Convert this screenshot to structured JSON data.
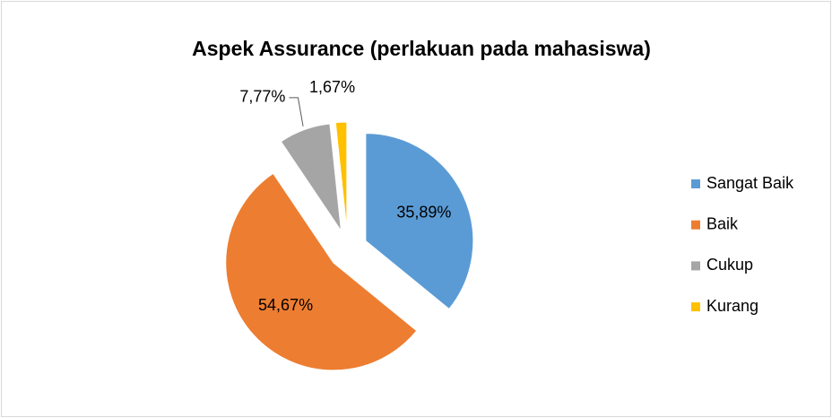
{
  "chart_data": {
    "type": "pie",
    "title": "Aspek Assurance (perlakuan pada mahasiswa)",
    "categories": [
      "Sangat Baik",
      "Baik",
      "Cukup",
      "Kurang"
    ],
    "values": [
      35.89,
      54.67,
      7.77,
      1.67
    ],
    "value_labels": [
      "35,89%",
      "54,67%",
      "7,77%",
      "1,67%"
    ],
    "colors": [
      "#5b9bd5",
      "#ed7d31",
      "#a5a5a5",
      "#ffc000"
    ],
    "legend": "right"
  }
}
